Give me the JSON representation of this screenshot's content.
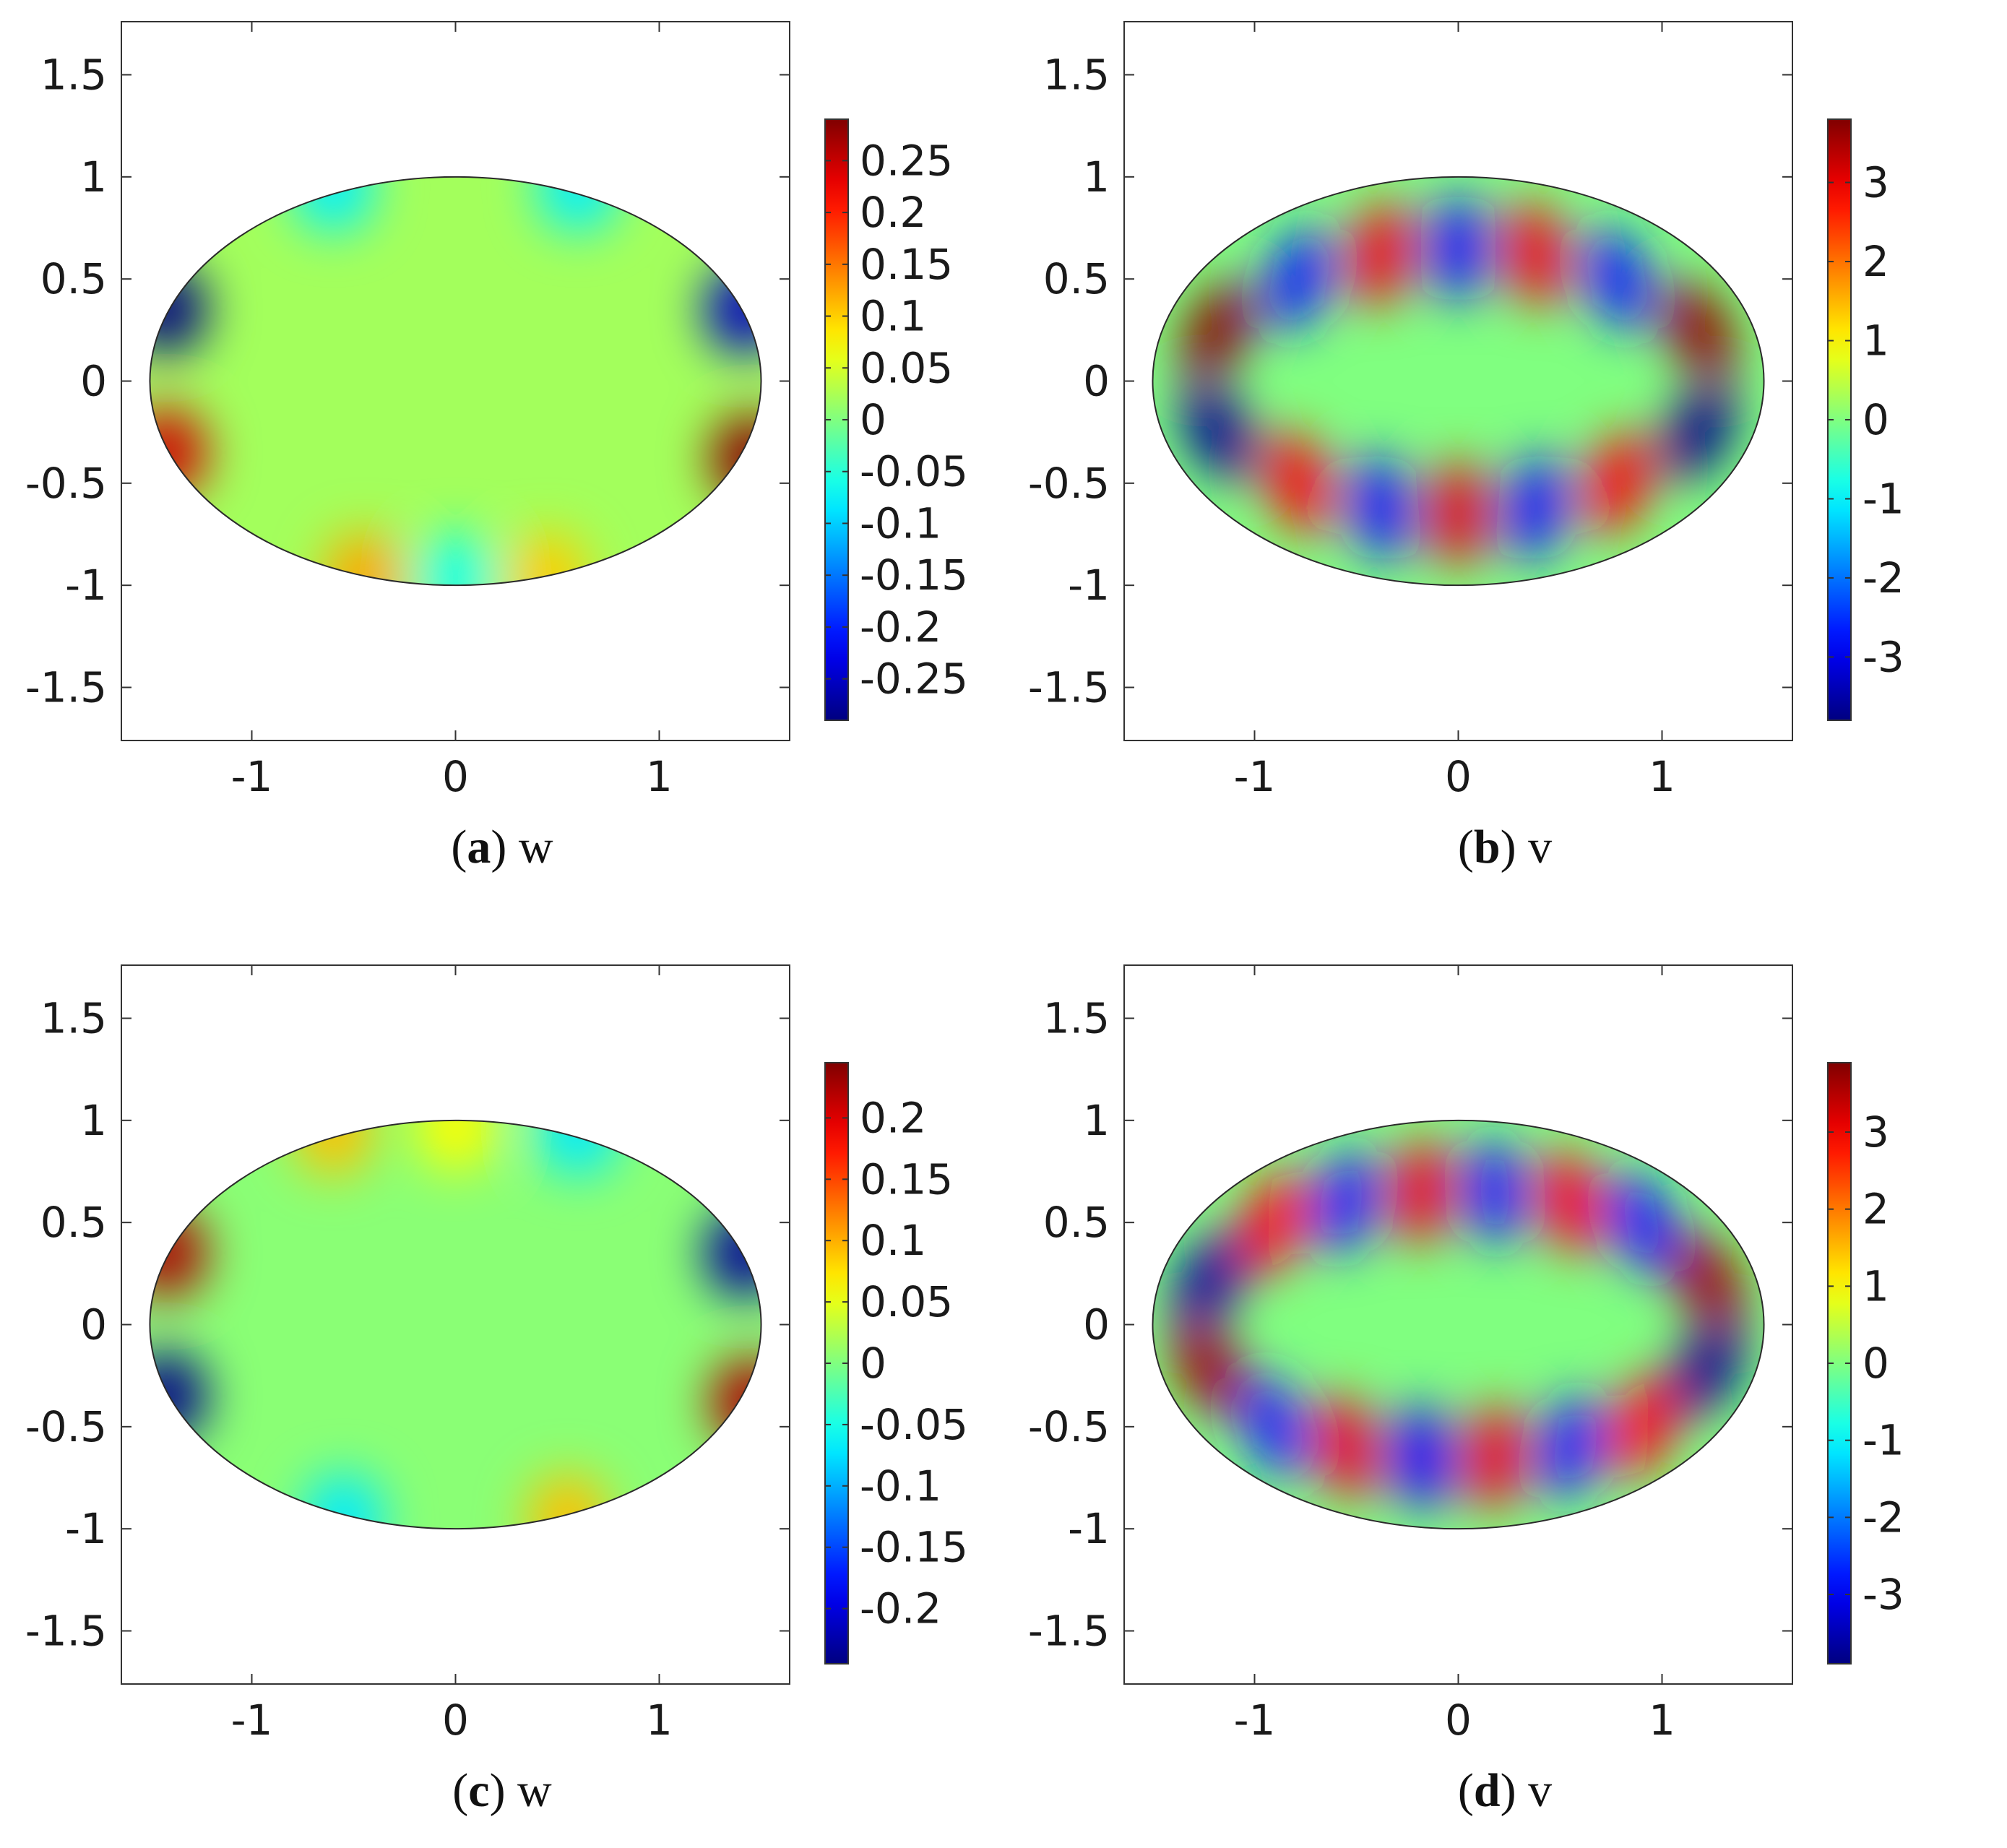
{
  "colormap": "jet",
  "chart_data": [
    {
      "type": "heatmap",
      "panel_label": "a",
      "caption_var": "w",
      "domain": "ellipse",
      "ellipse_semi_axes": [
        1.5,
        1.0
      ],
      "xlim": [
        -1.64,
        1.64
      ],
      "ylim": [
        -1.76,
        1.76
      ],
      "xticks": [
        -1,
        0,
        1
      ],
      "xtick_labels": [
        "-1",
        "0",
        "1"
      ],
      "yticks": [
        1.5,
        1,
        0.5,
        0,
        -0.5,
        -1,
        -1.5
      ],
      "ytick_labels": [
        "1.5",
        "1",
        "0.5",
        "0",
        "-0.5",
        "-1",
        "-1.5"
      ],
      "clim": [
        -0.29,
        0.29
      ],
      "colorbar_ticks": [
        0.25,
        0.2,
        0.15,
        0.1,
        0.05,
        0,
        -0.05,
        -0.1,
        -0.15,
        -0.2,
        -0.25
      ],
      "colorbar_tick_labels": [
        "0.25",
        "0.2",
        "0.15",
        "0.1",
        "0.05",
        "0",
        "-0.05",
        "-0.1",
        "-0.15",
        "-0.2",
        "-0.25"
      ],
      "base_value": 0.02,
      "features": [
        {
          "x": -1.42,
          "y": 0.35,
          "value": -0.29
        },
        {
          "x": 1.42,
          "y": 0.35,
          "value": -0.25
        },
        {
          "x": -1.42,
          "y": -0.35,
          "value": 0.24
        },
        {
          "x": 1.45,
          "y": -0.38,
          "value": 0.28
        },
        {
          "x": -0.6,
          "y": 0.95,
          "value": -0.08
        },
        {
          "x": 0.6,
          "y": 0.95,
          "value": -0.08
        },
        {
          "x": -0.45,
          "y": -0.96,
          "value": 0.12
        },
        {
          "x": 0.45,
          "y": -0.96,
          "value": 0.1
        },
        {
          "x": 0.0,
          "y": -0.96,
          "value": -0.06
        }
      ]
    },
    {
      "type": "heatmap",
      "panel_label": "b",
      "caption_var": "v",
      "domain": "ellipse",
      "ellipse_semi_axes": [
        1.5,
        1.0
      ],
      "xlim": [
        -1.64,
        1.64
      ],
      "ylim": [
        -1.76,
        1.76
      ],
      "xticks": [
        -1,
        0,
        1
      ],
      "xtick_labels": [
        "-1",
        "0",
        "1"
      ],
      "yticks": [
        1.5,
        1,
        0.5,
        0,
        -0.5,
        -1,
        -1.5
      ],
      "ytick_labels": [
        "1.5",
        "1",
        "0.5",
        "0",
        "-0.5",
        "-1",
        "-1.5"
      ],
      "clim": [
        -3.8,
        3.8
      ],
      "colorbar_ticks": [
        3,
        2,
        1,
        0,
        -1,
        -2,
        -3
      ],
      "colorbar_tick_labels": [
        "3",
        "2",
        "1",
        "0",
        "-1",
        "-2",
        "-3"
      ],
      "base_value": 0,
      "features": [
        {
          "x": -1.18,
          "y": 0.25,
          "value": 3.7
        },
        {
          "x": 1.18,
          "y": 0.25,
          "value": 3.6
        },
        {
          "x": -1.18,
          "y": -0.25,
          "value": -3.6
        },
        {
          "x": 1.18,
          "y": -0.25,
          "value": -3.7
        },
        {
          "x": -0.78,
          "y": 0.5,
          "value": -2.6
        },
        {
          "x": -0.38,
          "y": 0.62,
          "value": 2.9
        },
        {
          "x": 0.0,
          "y": 0.65,
          "value": -2.7
        },
        {
          "x": 0.38,
          "y": 0.62,
          "value": 2.9
        },
        {
          "x": 0.78,
          "y": 0.5,
          "value": -2.6
        },
        {
          "x": -0.78,
          "y": -0.5,
          "value": 2.8
        },
        {
          "x": -0.38,
          "y": -0.62,
          "value": -2.7
        },
        {
          "x": 0.0,
          "y": -0.65,
          "value": 3.0
        },
        {
          "x": 0.38,
          "y": -0.62,
          "value": -2.7
        },
        {
          "x": 0.78,
          "y": -0.5,
          "value": 2.8
        }
      ]
    },
    {
      "type": "heatmap",
      "panel_label": "c",
      "caption_var": "w",
      "domain": "ellipse",
      "ellipse_semi_axes": [
        1.5,
        1.0
      ],
      "xlim": [
        -1.64,
        1.64
      ],
      "ylim": [
        -1.76,
        1.76
      ],
      "xticks": [
        -1,
        0,
        1
      ],
      "xtick_labels": [
        "-1",
        "0",
        "1"
      ],
      "yticks": [
        1.5,
        1,
        0.5,
        0,
        -0.5,
        -1,
        -1.5
      ],
      "ytick_labels": [
        "1.5",
        "1",
        "0.5",
        "0",
        "-0.5",
        "-1",
        "-1.5"
      ],
      "clim": [
        -0.245,
        0.245
      ],
      "colorbar_ticks": [
        0.2,
        0.15,
        0.1,
        0.05,
        0,
        -0.05,
        -0.1,
        -0.15,
        -0.2
      ],
      "colorbar_tick_labels": [
        "0.2",
        "0.15",
        "0.1",
        "0.05",
        "0",
        "-0.05",
        "-0.1",
        "-0.15",
        "-0.2"
      ],
      "base_value": 0.005,
      "features": [
        {
          "x": -1.42,
          "y": 0.35,
          "value": 0.22
        },
        {
          "x": 1.42,
          "y": 0.35,
          "value": -0.23
        },
        {
          "x": -1.42,
          "y": -0.35,
          "value": -0.24
        },
        {
          "x": 1.45,
          "y": -0.38,
          "value": 0.22
        },
        {
          "x": -0.6,
          "y": 0.95,
          "value": 0.09
        },
        {
          "x": 0.6,
          "y": 0.95,
          "value": -0.07
        },
        {
          "x": 0.0,
          "y": 0.97,
          "value": 0.06
        },
        {
          "x": -0.55,
          "y": -0.95,
          "value": -0.07
        },
        {
          "x": 0.55,
          "y": -0.95,
          "value": 0.09
        }
      ]
    },
    {
      "type": "heatmap",
      "panel_label": "d",
      "caption_var": "v",
      "domain": "ellipse",
      "ellipse_semi_axes": [
        1.5,
        1.0
      ],
      "xlim": [
        -1.64,
        1.64
      ],
      "ylim": [
        -1.76,
        1.76
      ],
      "xticks": [
        -1,
        0,
        1
      ],
      "xtick_labels": [
        "-1",
        "0",
        "1"
      ],
      "yticks": [
        1.5,
        1,
        0.5,
        0,
        -0.5,
        -1,
        -1.5
      ],
      "ytick_labels": [
        "1.5",
        "1",
        "0.5",
        "0",
        "-0.5",
        "-1",
        "-1.5"
      ],
      "clim": [
        -3.9,
        3.9
      ],
      "colorbar_ticks": [
        3,
        2,
        1,
        0,
        -1,
        -2,
        -3
      ],
      "colorbar_tick_labels": [
        "3",
        "2",
        "1",
        "0",
        "-1",
        "-2",
        "-3"
      ],
      "base_value": 0,
      "features": [
        {
          "x": -1.22,
          "y": 0.22,
          "value": -3.6
        },
        {
          "x": 1.22,
          "y": 0.22,
          "value": 3.6
        },
        {
          "x": -1.22,
          "y": -0.22,
          "value": 3.6
        },
        {
          "x": 1.22,
          "y": -0.22,
          "value": -3.7
        },
        {
          "x": -0.9,
          "y": 0.5,
          "value": 2.8
        },
        {
          "x": -0.55,
          "y": 0.6,
          "value": -2.7
        },
        {
          "x": -0.18,
          "y": 0.65,
          "value": 3.0
        },
        {
          "x": 0.18,
          "y": 0.65,
          "value": -2.7
        },
        {
          "x": 0.55,
          "y": 0.6,
          "value": 2.9
        },
        {
          "x": 0.9,
          "y": 0.5,
          "value": -2.7
        },
        {
          "x": -0.9,
          "y": -0.5,
          "value": -2.6
        },
        {
          "x": -0.55,
          "y": -0.6,
          "value": 3.0
        },
        {
          "x": -0.18,
          "y": -0.65,
          "value": -2.8
        },
        {
          "x": 0.18,
          "y": -0.65,
          "value": 3.0
        },
        {
          "x": 0.55,
          "y": -0.6,
          "value": -2.7
        },
        {
          "x": 0.9,
          "y": -0.5,
          "value": 2.8
        }
      ]
    }
  ]
}
